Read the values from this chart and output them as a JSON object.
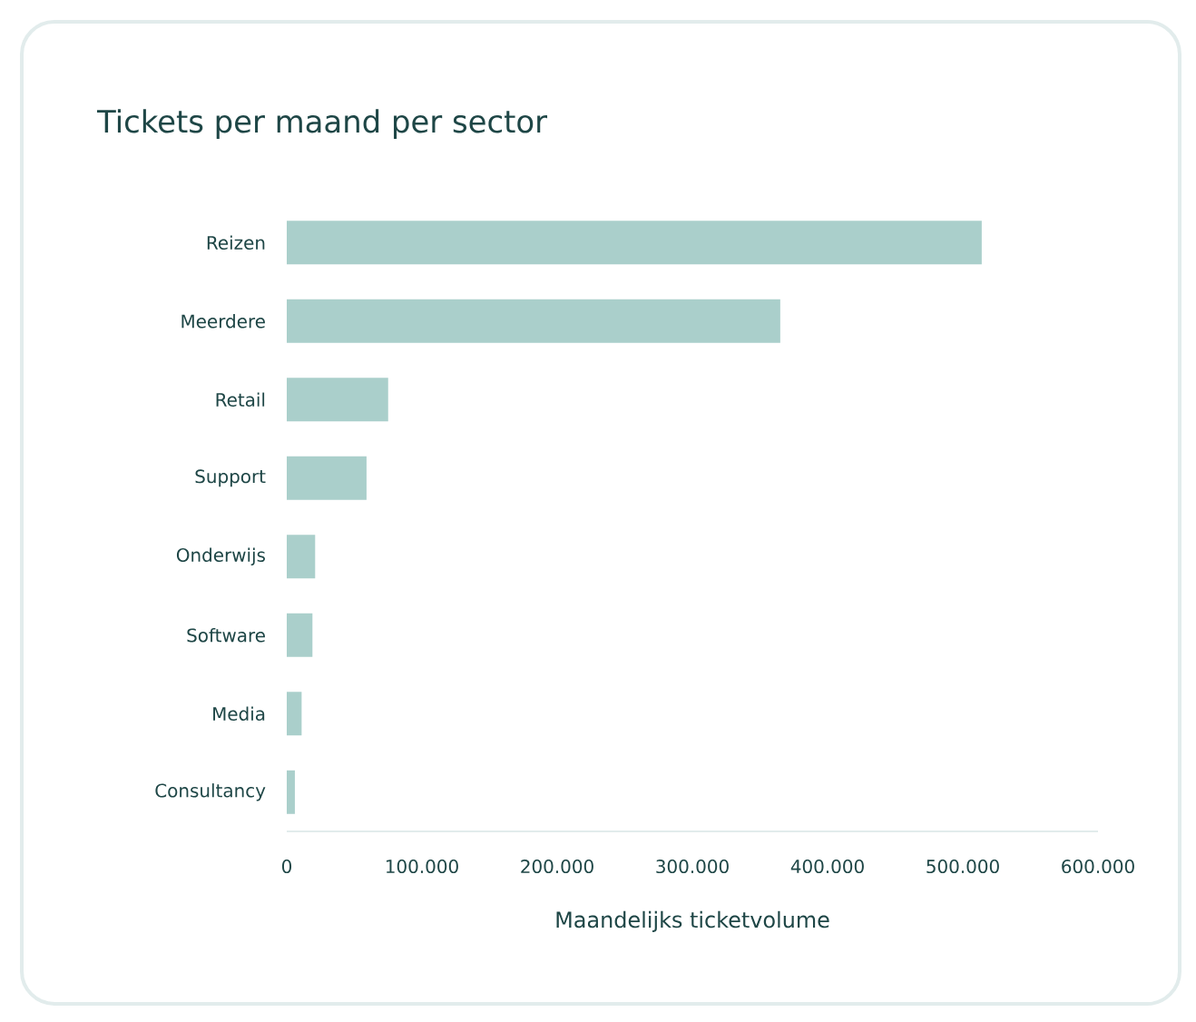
{
  "chart_data": {
    "type": "bar",
    "orientation": "horizontal",
    "title": "Tickets per maand per sector",
    "xlabel": "Maandelijks ticketvolume",
    "categories": [
      "Reizen",
      "Meerdere",
      "Retail",
      "Support",
      "Onderwijs",
      "Software",
      "Media",
      "Consultancy"
    ],
    "values": [
      514000,
      365000,
      75000,
      59000,
      21000,
      19000,
      11000,
      6000
    ],
    "color": "#aacfcb",
    "xlim": [
      0,
      600000
    ],
    "xticks": [
      0,
      {
        "value": 100000,
        "label": "100.000"
      },
      {
        "value": 200000,
        "label": "200.000"
      },
      {
        "value": 300000,
        "label": "300.000"
      },
      {
        "value": 400000,
        "label": "400.000"
      },
      {
        "value": 500000,
        "label": "500.000"
      },
      {
        "value": 600000,
        "label": "600.000"
      }
    ]
  }
}
